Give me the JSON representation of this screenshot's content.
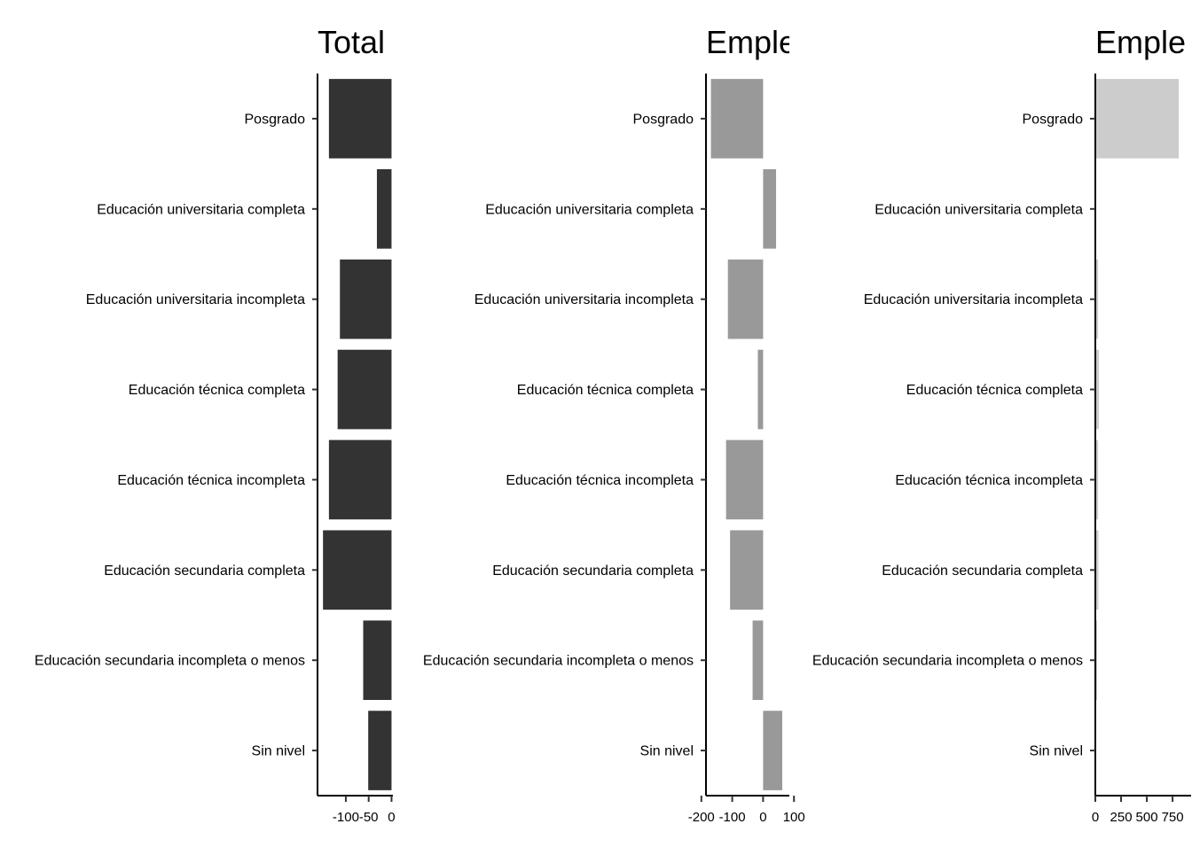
{
  "chart_data": [
    {
      "type": "bar",
      "orientation": "horizontal",
      "title": "Total",
      "categories": [
        "Posgrado",
        "Educación universitaria completa",
        "Educación universitaria incompleta",
        "Educación técnica completa",
        "Educación técnica incompleta",
        "Educación secundaria completa",
        "Educación secundaria incompleta o menos",
        "Sin nivel"
      ],
      "values": [
        -137,
        -32,
        -113,
        -118,
        -137,
        -150,
        -62,
        -51
      ],
      "xlim": [
        -162,
        3
      ],
      "xticks": [
        -100,
        -50,
        0
      ],
      "xtick_labels": [
        "-100",
        "-50",
        "0"
      ],
      "xlabel": "",
      "ylabel": "",
      "bar_color": "#333333",
      "grid": false
    },
    {
      "type": "bar",
      "orientation": "horizontal",
      "title": "Emple",
      "categories": [
        "Posgrado",
        "Educación universitaria completa",
        "Educación universitaria incompleta",
        "Educación técnica completa",
        "Educación técnica incompleta",
        "Educación secundaria completa",
        "Educación secundaria incompleta o menos",
        "Sin nivel"
      ],
      "values": [
        -169,
        42,
        -114,
        -17,
        -120,
        -107,
        -34,
        62
      ],
      "xlim": [
        -185,
        85
      ],
      "xticks": [
        -200,
        -100,
        0,
        100
      ],
      "xtick_labels": [
        "-200",
        "-100",
        "0",
        "100"
      ],
      "xlabel": "",
      "ylabel": "",
      "bar_color": "#999999",
      "grid": false
    },
    {
      "type": "bar",
      "orientation": "horizontal",
      "title": "Emple",
      "categories": [
        "Posgrado",
        "Educación universitaria completa",
        "Educación universitaria incompleta",
        "Educación técnica completa",
        "Educación técnica incompleta",
        "Educación secundaria completa",
        "Educación secundaria incompleta o menos",
        "Sin nivel"
      ],
      "values": [
        810,
        0,
        27,
        35,
        27,
        30,
        17,
        0
      ],
      "xlim": [
        0,
        930
      ],
      "xticks": [
        0,
        250,
        500,
        750
      ],
      "xtick_labels": [
        "0",
        "250",
        "500",
        "750"
      ],
      "xlabel": "",
      "ylabel": "",
      "bar_color": "#cccccc",
      "grid": false
    }
  ]
}
